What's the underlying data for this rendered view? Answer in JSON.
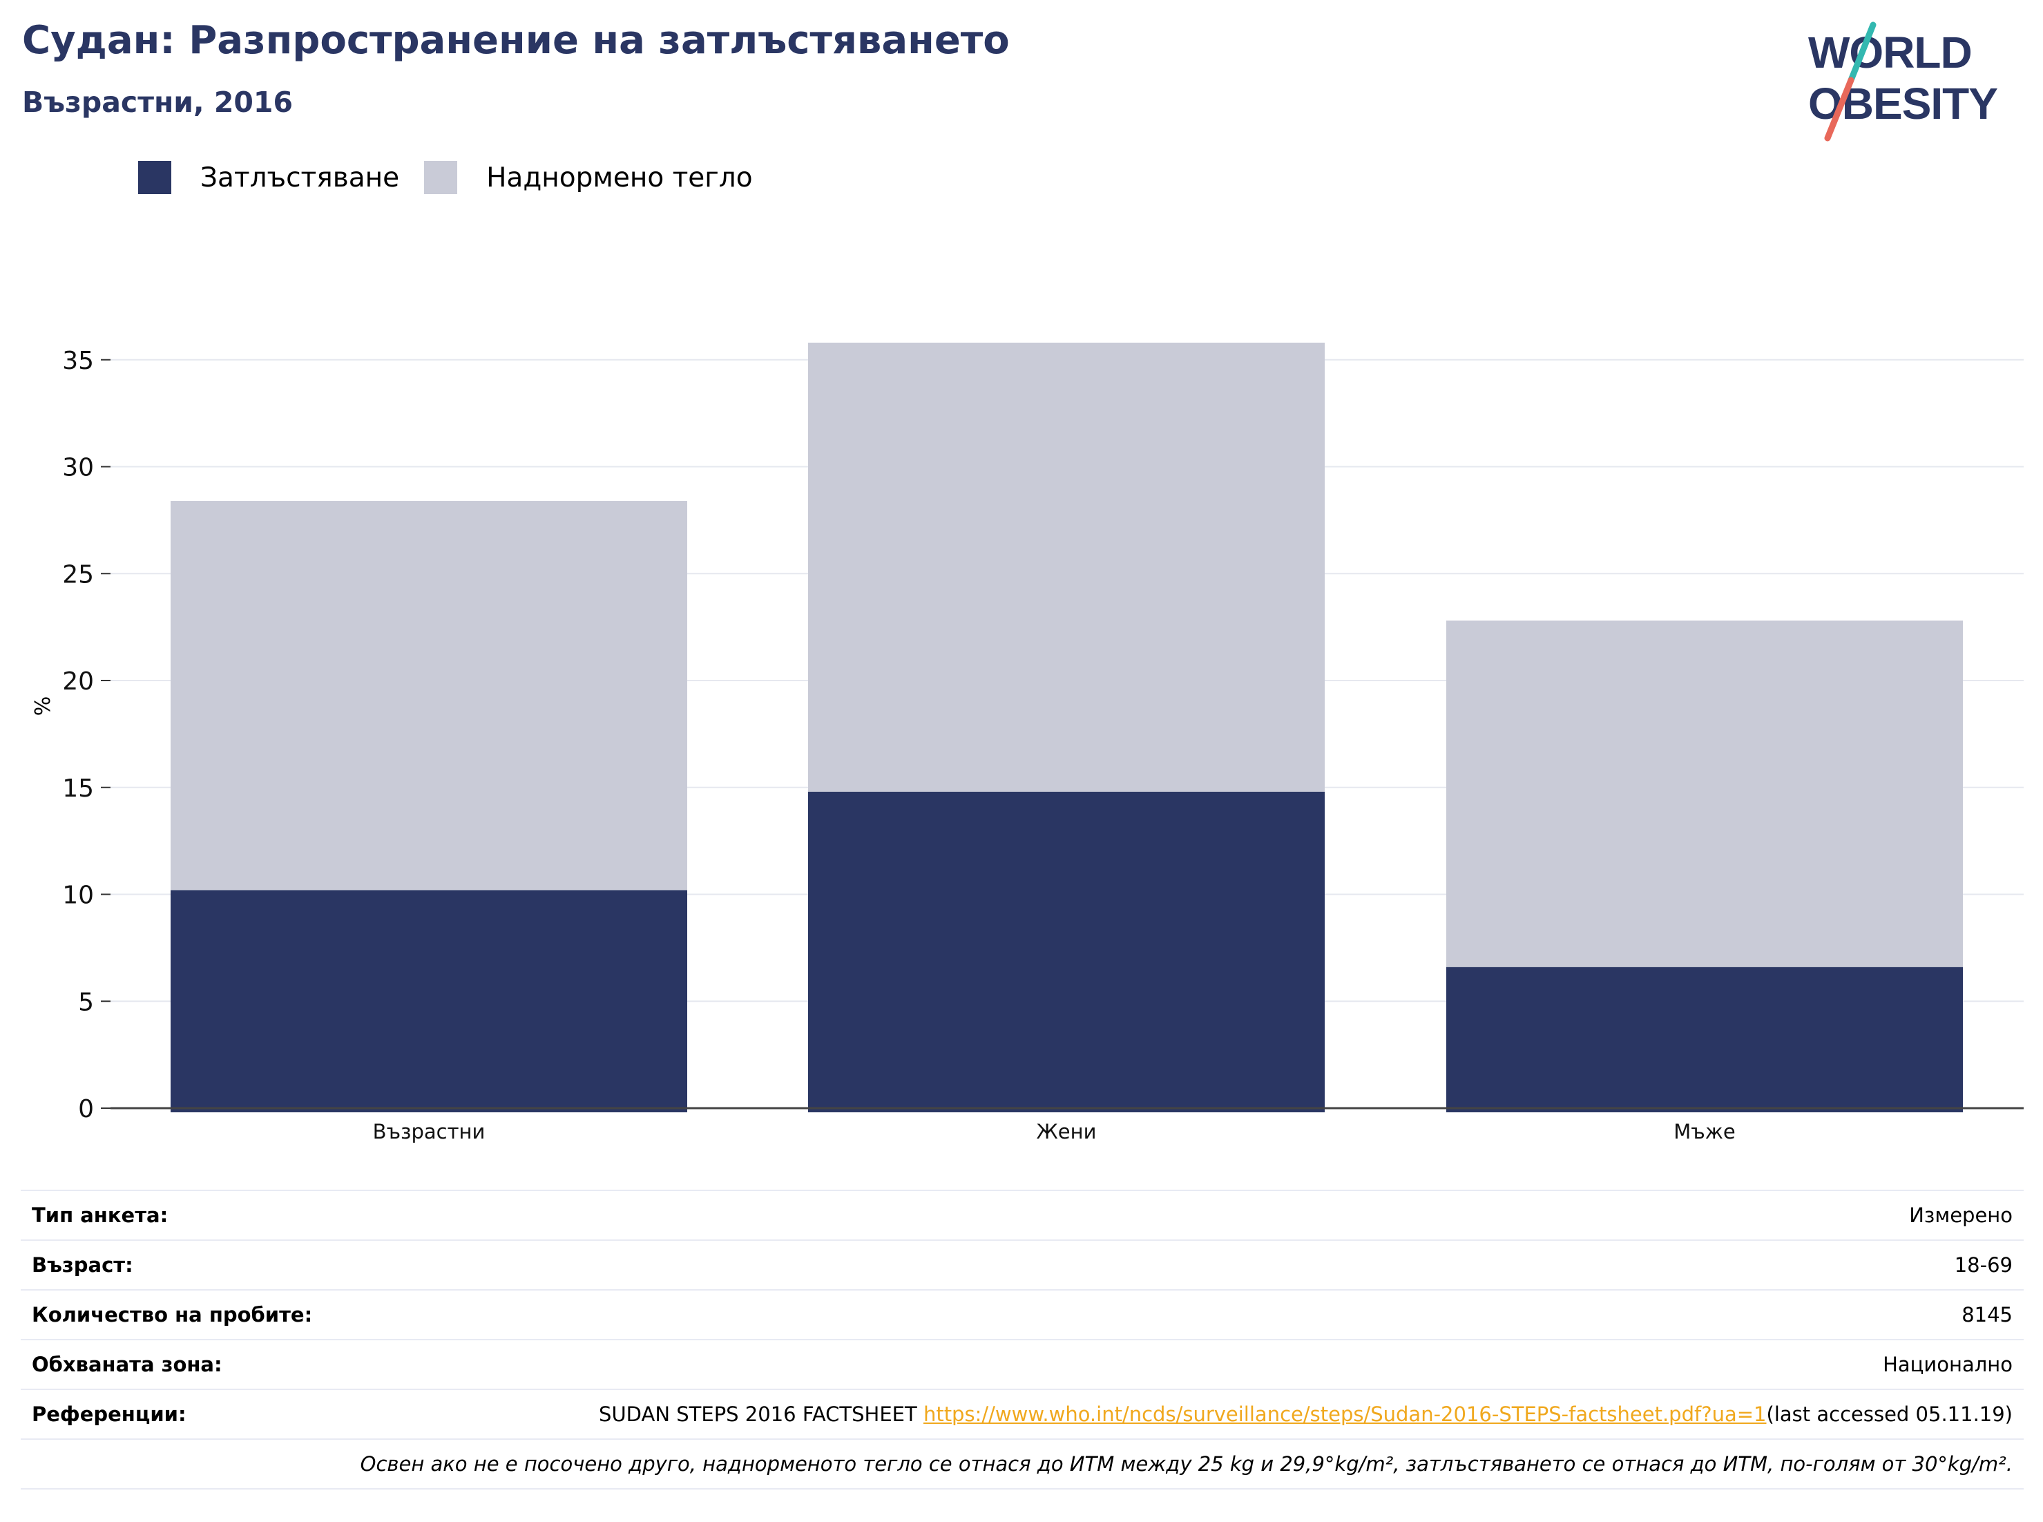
{
  "header": {
    "title": "Судан: Разпространение на затлъстяването",
    "subtitle": "Възрастни, 2016"
  },
  "logo": {
    "line1": "WORLD",
    "line2": "OBESITY",
    "colors": {
      "text": "#2a3663",
      "slash_top": "#33b8b0",
      "slash_bottom": "#e8685a"
    }
  },
  "legend": [
    {
      "label": "Затлъстяване",
      "color": "#2a3663"
    },
    {
      "label": "Наднормено тегло",
      "color": "#c9cbd7"
    }
  ],
  "chart_data": {
    "type": "bar",
    "stacked": true,
    "categories": [
      "Възрастни",
      "Жени",
      "Мъже"
    ],
    "series": [
      {
        "name": "Затлъстяване",
        "color": "#2a3663",
        "values": [
          10.2,
          14.8,
          6.6
        ]
      },
      {
        "name": "Наднормено тегло",
        "color": "#c9cbd7",
        "values": [
          18.2,
          21.0,
          16.2
        ]
      }
    ],
    "ylabel": "%",
    "xlabel": "",
    "ylim": [
      0,
      37
    ],
    "yticks": [
      0,
      5,
      10,
      15,
      20,
      25,
      30,
      35
    ],
    "grid": true,
    "legend_position": "top-left"
  },
  "info": {
    "survey_type": {
      "label": "Тип анкета:",
      "value": "Измерено"
    },
    "age": {
      "label": "Възраст:",
      "value": "18-69"
    },
    "sample_size": {
      "label": "Количество на пробите:",
      "value": "8145"
    },
    "coverage": {
      "label": "Обхваната зона:",
      "value": "Национално"
    },
    "references": {
      "label": "Референции:",
      "source": "SUDAN STEPS 2016 FACTSHEET ",
      "url": "https://www.who.int/ncds/surveillance/steps/Sudan-2016-STEPS-factsheet.pdf?ua=1",
      "accessed": "(last accessed 05.11.19)"
    },
    "note": "Освен ако не е посочено друго, наднорменото тегло се отнася до ИТМ между 25 kg и 29,9°kg/m², затлъстяването се отнася до ИТМ, по-голям от 30°kg/m²."
  }
}
